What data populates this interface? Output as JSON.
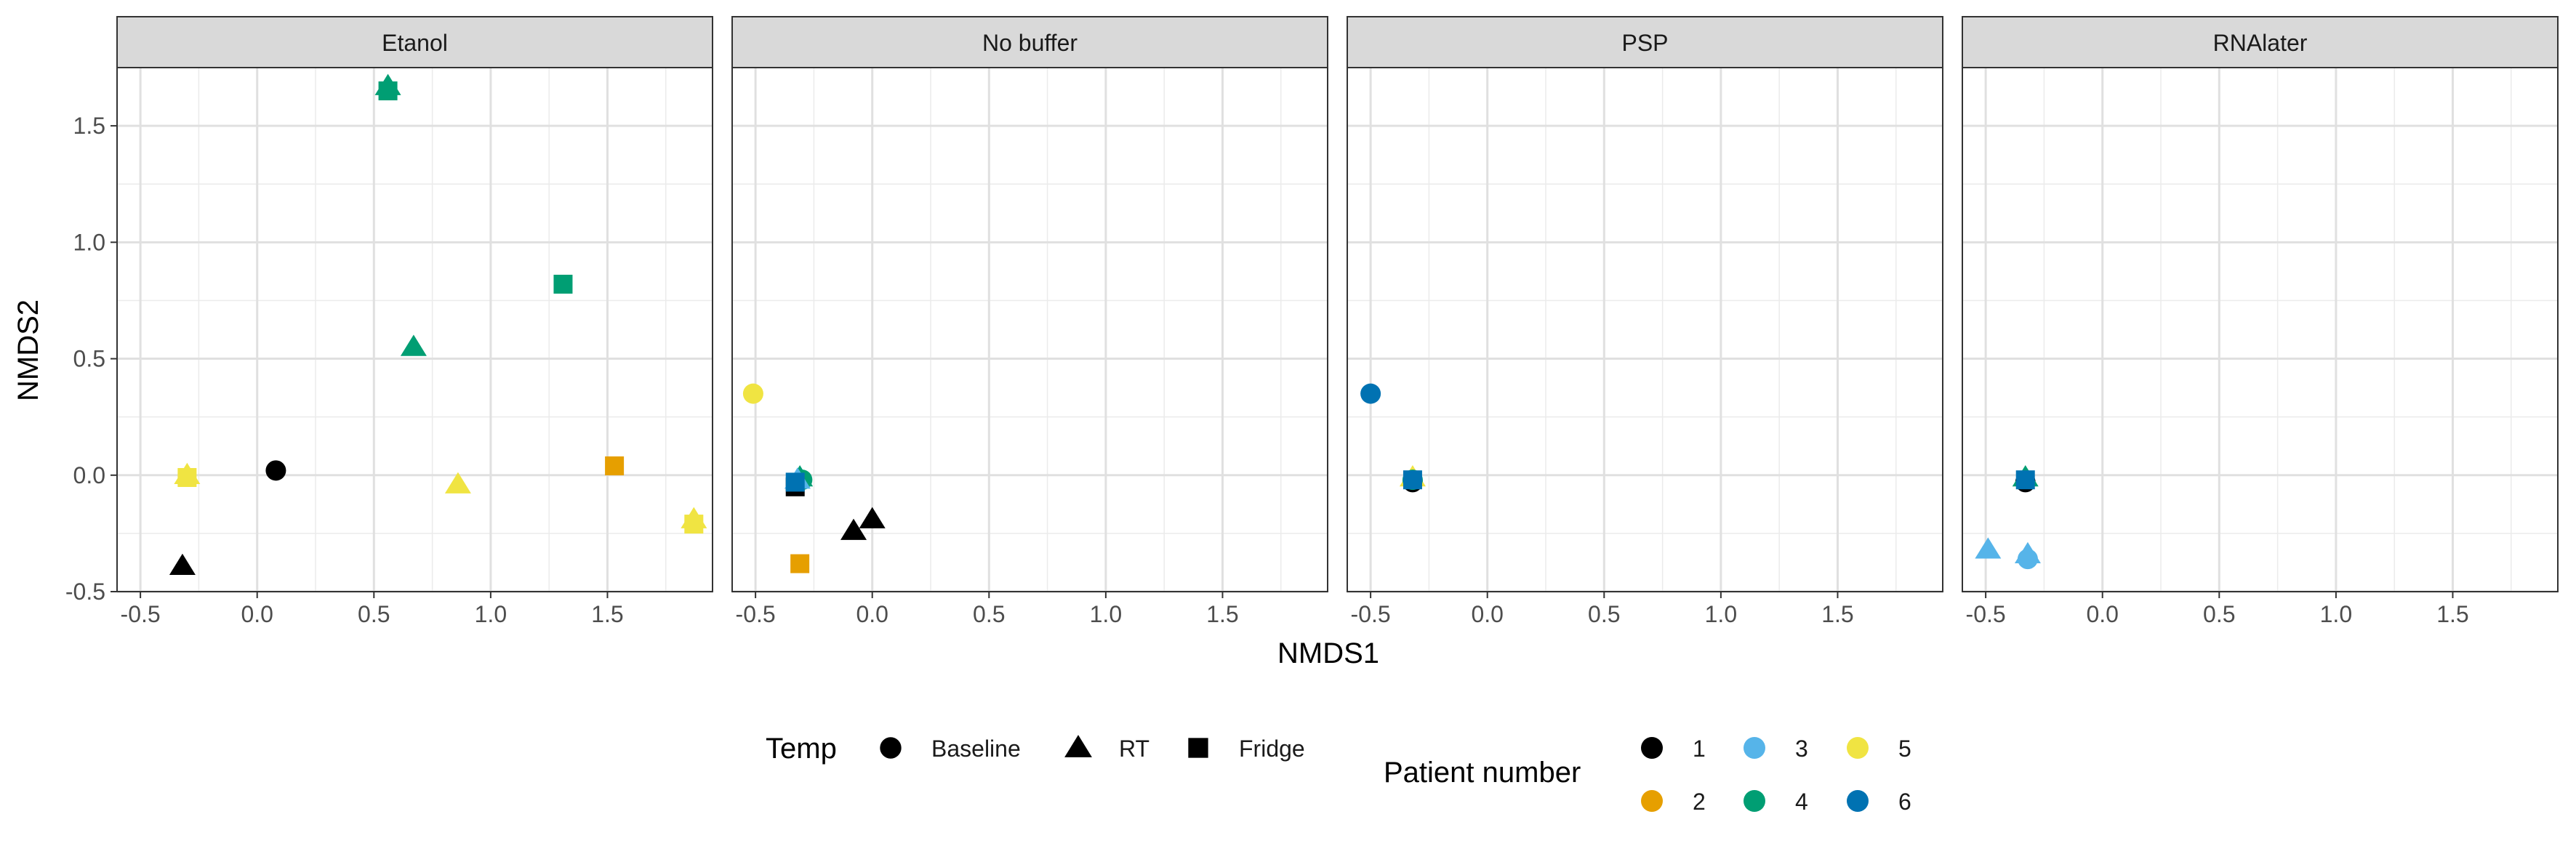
{
  "chart_data": {
    "type": "scatter",
    "facet_by": "buffer",
    "panels": [
      "Etanol",
      "No buffer",
      "PSP",
      "RNAlater"
    ],
    "xlabel": "NMDS1",
    "ylabel": "NMDS2",
    "xlim": [
      -0.6,
      1.95
    ],
    "ylim": [
      -0.5,
      1.75
    ],
    "xticks": [
      -0.5,
      0.0,
      0.5,
      1.0,
      1.5
    ],
    "xtick_labels": [
      "-0.5",
      "0.0",
      "0.5",
      "1.0",
      "1.5"
    ],
    "yticks": [
      -0.5,
      0.0,
      0.5,
      1.0,
      1.5
    ],
    "ytick_labels": [
      "-0.5",
      "0.0",
      "0.5",
      "1.0",
      "1.5"
    ],
    "grid": true,
    "legend_position": "bottom",
    "shape_legend": {
      "title": "Temp",
      "items": [
        {
          "key": "Baseline",
          "label": "Baseline",
          "shape": "circle"
        },
        {
          "key": "RT",
          "label": "RT",
          "shape": "triangle"
        },
        {
          "key": "Fridge",
          "label": "Fridge",
          "shape": "square"
        }
      ]
    },
    "color_legend": {
      "title": "Patient number",
      "items": [
        {
          "key": "1",
          "label": "1",
          "color": "#000000"
        },
        {
          "key": "2",
          "label": "2",
          "color": "#E69F00"
        },
        {
          "key": "3",
          "label": "3",
          "color": "#56B4E9"
        },
        {
          "key": "4",
          "label": "4",
          "color": "#009E73"
        },
        {
          "key": "5",
          "label": "5",
          "color": "#F0E442"
        },
        {
          "key": "6",
          "label": "6",
          "color": "#0072B2"
        }
      ]
    },
    "points": [
      {
        "panel": "Etanol",
        "temp": "RT",
        "patient": "4",
        "x": 0.56,
        "y": 1.67
      },
      {
        "panel": "Etanol",
        "temp": "Fridge",
        "patient": "4",
        "x": 0.56,
        "y": 1.65
      },
      {
        "panel": "Etanol",
        "temp": "Fridge",
        "patient": "4",
        "x": 1.31,
        "y": 0.82
      },
      {
        "panel": "Etanol",
        "temp": "RT",
        "patient": "4",
        "x": 0.67,
        "y": 0.55
      },
      {
        "panel": "Etanol",
        "temp": "Baseline",
        "patient": "1",
        "x": 0.08,
        "y": 0.02
      },
      {
        "panel": "Etanol",
        "temp": "Fridge",
        "patient": "2",
        "x": 1.53,
        "y": 0.04
      },
      {
        "panel": "Etanol",
        "temp": "RT",
        "patient": "5",
        "x": 0.86,
        "y": -0.04
      },
      {
        "panel": "Etanol",
        "temp": "RT",
        "patient": "5",
        "x": -0.3,
        "y": 0.0
      },
      {
        "panel": "Etanol",
        "temp": "Fridge",
        "patient": "5",
        "x": -0.3,
        "y": -0.01
      },
      {
        "panel": "Etanol",
        "temp": "RT",
        "patient": "5",
        "x": 1.87,
        "y": -0.19
      },
      {
        "panel": "Etanol",
        "temp": "Fridge",
        "patient": "5",
        "x": 1.87,
        "y": -0.21
      },
      {
        "panel": "Etanol",
        "temp": "RT",
        "patient": "1",
        "x": -0.32,
        "y": -0.39
      },
      {
        "panel": "No buffer",
        "temp": "Baseline",
        "patient": "5",
        "x": -0.51,
        "y": 0.35
      },
      {
        "panel": "No buffer",
        "temp": "Fridge",
        "patient": "1",
        "x": -0.33,
        "y": -0.05
      },
      {
        "panel": "No buffer",
        "temp": "RT",
        "patient": "4",
        "x": -0.31,
        "y": -0.01
      },
      {
        "panel": "No buffer",
        "temp": "Baseline",
        "patient": "4",
        "x": -0.3,
        "y": -0.02
      },
      {
        "panel": "No buffer",
        "temp": "RT",
        "patient": "3",
        "x": -0.32,
        "y": -0.02
      },
      {
        "panel": "No buffer",
        "temp": "Fridge",
        "patient": "6",
        "x": -0.33,
        "y": -0.03
      },
      {
        "panel": "No buffer",
        "temp": "RT",
        "patient": "1",
        "x": 0.0,
        "y": -0.19
      },
      {
        "panel": "No buffer",
        "temp": "RT",
        "patient": "1",
        "x": -0.08,
        "y": -0.24
      },
      {
        "panel": "No buffer",
        "temp": "Fridge",
        "patient": "2",
        "x": -0.31,
        "y": -0.38
      },
      {
        "panel": "PSP",
        "temp": "Baseline",
        "patient": "6",
        "x": -0.5,
        "y": 0.35
      },
      {
        "panel": "PSP",
        "temp": "Baseline",
        "patient": "1",
        "x": -0.32,
        "y": -0.03
      },
      {
        "panel": "PSP",
        "temp": "RT",
        "patient": "5",
        "x": -0.32,
        "y": -0.01
      },
      {
        "panel": "PSP",
        "temp": "Baseline",
        "patient": "4",
        "x": -0.32,
        "y": -0.02
      },
      {
        "panel": "PSP",
        "temp": "Fridge",
        "patient": "6",
        "x": -0.32,
        "y": -0.02
      },
      {
        "panel": "RNAlater",
        "temp": "Baseline",
        "patient": "1",
        "x": -0.33,
        "y": -0.03
      },
      {
        "panel": "RNAlater",
        "temp": "RT",
        "patient": "4",
        "x": -0.33,
        "y": -0.01
      },
      {
        "panel": "RNAlater",
        "temp": "Fridge",
        "patient": "6",
        "x": -0.33,
        "y": -0.02
      },
      {
        "panel": "RNAlater",
        "temp": "RT",
        "patient": "3",
        "x": -0.49,
        "y": -0.32
      },
      {
        "panel": "RNAlater",
        "temp": "RT",
        "patient": "3",
        "x": -0.32,
        "y": -0.34
      },
      {
        "panel": "RNAlater",
        "temp": "Baseline",
        "patient": "3",
        "x": -0.32,
        "y": -0.36
      }
    ]
  }
}
